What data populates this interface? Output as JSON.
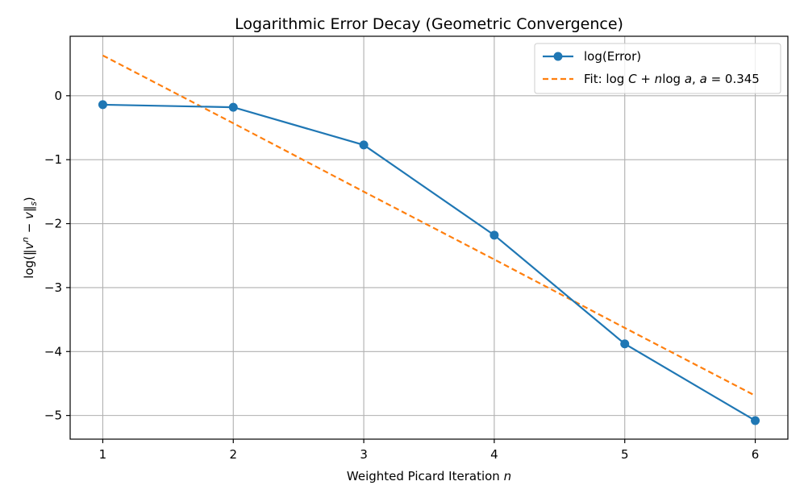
{
  "chart_data": {
    "type": "line",
    "title": "Logarithmic Error Decay (Geometric Convergence)",
    "xlabel_text": "Weighted Picard Iteration ",
    "xlabel_var": "n",
    "ylabel": {
      "prefix": "log(‖",
      "base": "v",
      "sup": "n",
      "mid": " − ",
      "var": "v",
      "close": "‖",
      "sub": "s",
      "suffix": ")"
    },
    "x": [
      1,
      2,
      3,
      4,
      5,
      6
    ],
    "xlim": [
      0.75,
      6.25
    ],
    "ylim": [
      -5.37,
      0.93
    ],
    "xticks": [
      1,
      2,
      3,
      4,
      5,
      6
    ],
    "yticks": [
      0,
      -1,
      -2,
      -3,
      -4,
      -5
    ],
    "ytick_labels": [
      "0",
      "−1",
      "−2",
      "−3",
      "−4",
      "−5"
    ],
    "grid": true,
    "legend_position": "top-right",
    "series": [
      {
        "name": "log(Error)",
        "style": "line-with-markers",
        "color": "#1f77b4",
        "values": [
          -0.14,
          -0.18,
          -0.77,
          -2.18,
          -3.88,
          -5.08
        ]
      },
      {
        "name_parts": {
          "prefix": "Fit: ",
          "log1": "log",
          "C": "C",
          "plus": " + ",
          "n": "n",
          "log2": "log",
          "a1": "a",
          "comma": ", ",
          "a2": "a",
          "eq": " = 0.345"
        },
        "style": "dashed",
        "color": "#ff7f0e",
        "values": [
          0.63,
          -0.43,
          -1.5,
          -2.56,
          -3.63,
          -4.69
        ]
      }
    ]
  }
}
